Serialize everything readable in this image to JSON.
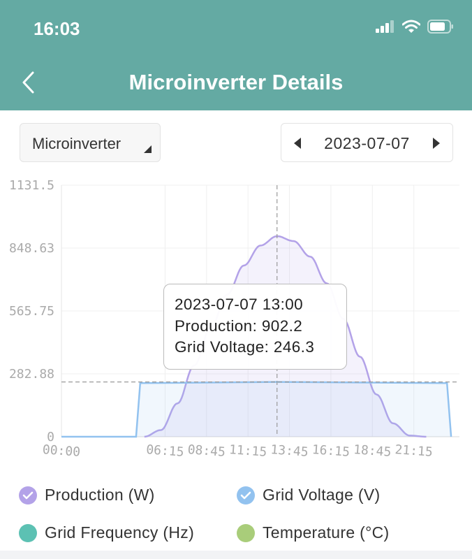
{
  "status_bar": {
    "time": "16:03"
  },
  "header": {
    "title": "Microinverter Details"
  },
  "filters": {
    "device_select": "Microinverter",
    "date": "2023-07-07"
  },
  "colors": {
    "header_bg": "#64aaa3",
    "production": "#b3a2e8",
    "grid_voltage": "#92c2ef",
    "grid_frequency": "#5cc1b3",
    "temperature": "#a9cd7a"
  },
  "tooltip": {
    "time": "2023-07-07 13:00",
    "production": "Production: 902.2",
    "voltage": "Grid Voltage: 246.3"
  },
  "legend": [
    {
      "label": "Production (W)",
      "icon": "check-icon",
      "checked": true
    },
    {
      "label": "Grid Voltage (V)",
      "icon": "check-icon",
      "checked": true
    },
    {
      "label": "Grid Frequency (Hz)",
      "checked": false
    },
    {
      "label": "Temperature (°C)",
      "checked": false
    }
  ],
  "chart_data": {
    "type": "area",
    "x_ticks": [
      "00:00",
      "06:15",
      "08:45",
      "11:15",
      "13:45",
      "16:15",
      "18:45",
      "21:15"
    ],
    "y_ticks": [
      "0",
      "282.88",
      "565.75",
      "848.63",
      "1131.5"
    ],
    "ylim": [
      0,
      1131.5
    ],
    "grid": true,
    "cursor_time": "13:00",
    "series": [
      {
        "name": "Production (W)",
        "x": [
          "05:00",
          "06:00",
          "07:00",
          "08:00",
          "09:00",
          "10:00",
          "11:00",
          "12:00",
          "13:00",
          "14:00",
          "15:00",
          "16:00",
          "17:00",
          "18:00",
          "19:00",
          "20:00",
          "21:00",
          "22:00"
        ],
        "values": [
          0,
          30,
          150,
          320,
          490,
          640,
          770,
          860,
          902.2,
          880,
          810,
          690,
          530,
          360,
          190,
          60,
          5,
          0
        ]
      },
      {
        "name": "Grid Voltage (V)",
        "x": [
          "00:00",
          "04:30",
          "04:45",
          "13:00",
          "23:15",
          "23:30"
        ],
        "values": [
          0,
          0,
          241,
          246.3,
          241,
          0
        ]
      }
    ]
  }
}
